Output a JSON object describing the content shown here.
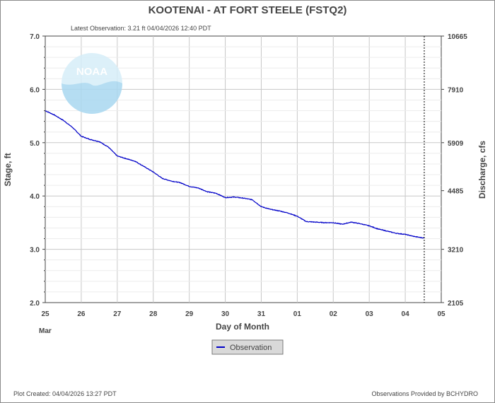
{
  "chart_data": {
    "type": "line",
    "title": "KOOTENAI - AT FORT STEELE  (FSTQ2)",
    "subtitle": "Latest Observation: 3.21 ft 04/04/2026 12:40 PDT",
    "xlabel": "Day of Month",
    "ylabel": "Stage, ft",
    "y2label": "Discharge, cfs",
    "x_ticks": [
      "25",
      "26",
      "27",
      "28",
      "29",
      "30",
      "31",
      "01",
      "02",
      "03",
      "04",
      "05"
    ],
    "x_month_label": "Mar",
    "x_range": [
      "2026-03-25 00:00",
      "2026-04-05 00:00"
    ],
    "ylim": [
      2.0,
      7.0
    ],
    "y_ticks": [
      "2.0",
      "3.0",
      "4.0",
      "5.0",
      "6.0",
      "7.0"
    ],
    "y2_ticks": [
      {
        "stage": 2.0,
        "label": "2105"
      },
      {
        "stage": 3.0,
        "label": "3210"
      },
      {
        "stage": 4.1,
        "label": "4485"
      },
      {
        "stage": 5.0,
        "label": "5909"
      },
      {
        "stage": 6.0,
        "label": "7910"
      },
      {
        "stage": 7.0,
        "label": "10665"
      }
    ],
    "grid": true,
    "latest_observation_time": "2026-04-04 12:40",
    "legend": {
      "placement": "bottom-center",
      "entries": [
        "Observation"
      ]
    },
    "series": [
      {
        "name": "Observation",
        "color": "#0000c8",
        "points": [
          [
            "2026-03-25 00:00",
            5.6
          ],
          [
            "2026-03-25 06:00",
            5.52
          ],
          [
            "2026-03-25 12:00",
            5.42
          ],
          [
            "2026-03-25 18:00",
            5.29
          ],
          [
            "2026-03-26 00:00",
            5.12
          ],
          [
            "2026-03-26 06:00",
            5.06
          ],
          [
            "2026-03-26 12:00",
            5.02
          ],
          [
            "2026-03-26 18:00",
            4.92
          ],
          [
            "2026-03-27 00:00",
            4.75
          ],
          [
            "2026-03-27 06:00",
            4.7
          ],
          [
            "2026-03-27 12:00",
            4.65
          ],
          [
            "2026-03-27 18:00",
            4.55
          ],
          [
            "2026-03-28 00:00",
            4.45
          ],
          [
            "2026-03-28 06:00",
            4.33
          ],
          [
            "2026-03-28 12:00",
            4.28
          ],
          [
            "2026-03-28 18:00",
            4.25
          ],
          [
            "2026-03-29 00:00",
            4.18
          ],
          [
            "2026-03-29 06:00",
            4.15
          ],
          [
            "2026-03-29 12:00",
            4.08
          ],
          [
            "2026-03-29 18:00",
            4.05
          ],
          [
            "2026-03-30 00:00",
            3.97
          ],
          [
            "2026-03-30 06:00",
            3.98
          ],
          [
            "2026-03-30 12:00",
            3.96
          ],
          [
            "2026-03-30 18:00",
            3.93
          ],
          [
            "2026-03-31 00:00",
            3.8
          ],
          [
            "2026-03-31 06:00",
            3.75
          ],
          [
            "2026-03-31 12:00",
            3.72
          ],
          [
            "2026-03-31 18:00",
            3.68
          ],
          [
            "2026-04-01 00:00",
            3.62
          ],
          [
            "2026-04-01 06:00",
            3.52
          ],
          [
            "2026-04-01 12:00",
            3.51
          ],
          [
            "2026-04-01 18:00",
            3.5
          ],
          [
            "2026-04-02 00:00",
            3.5
          ],
          [
            "2026-04-02 06:00",
            3.47
          ],
          [
            "2026-04-02 12:00",
            3.51
          ],
          [
            "2026-04-02 18:00",
            3.48
          ],
          [
            "2026-04-03 00:00",
            3.44
          ],
          [
            "2026-04-03 06:00",
            3.38
          ],
          [
            "2026-04-03 12:00",
            3.34
          ],
          [
            "2026-04-03 18:00",
            3.3
          ],
          [
            "2026-04-04 00:00",
            3.28
          ],
          [
            "2026-04-04 06:00",
            3.24
          ],
          [
            "2026-04-04 12:40",
            3.21
          ]
        ]
      }
    ]
  },
  "footer": {
    "created": "Plot Created: 04/04/2026 13:27 PDT",
    "provider": "Observations Provided by BCHYDRO"
  },
  "logo": {
    "text": "NOAA",
    "icon": "noaa-logo-watermark",
    "color": "#bfe3f5"
  }
}
